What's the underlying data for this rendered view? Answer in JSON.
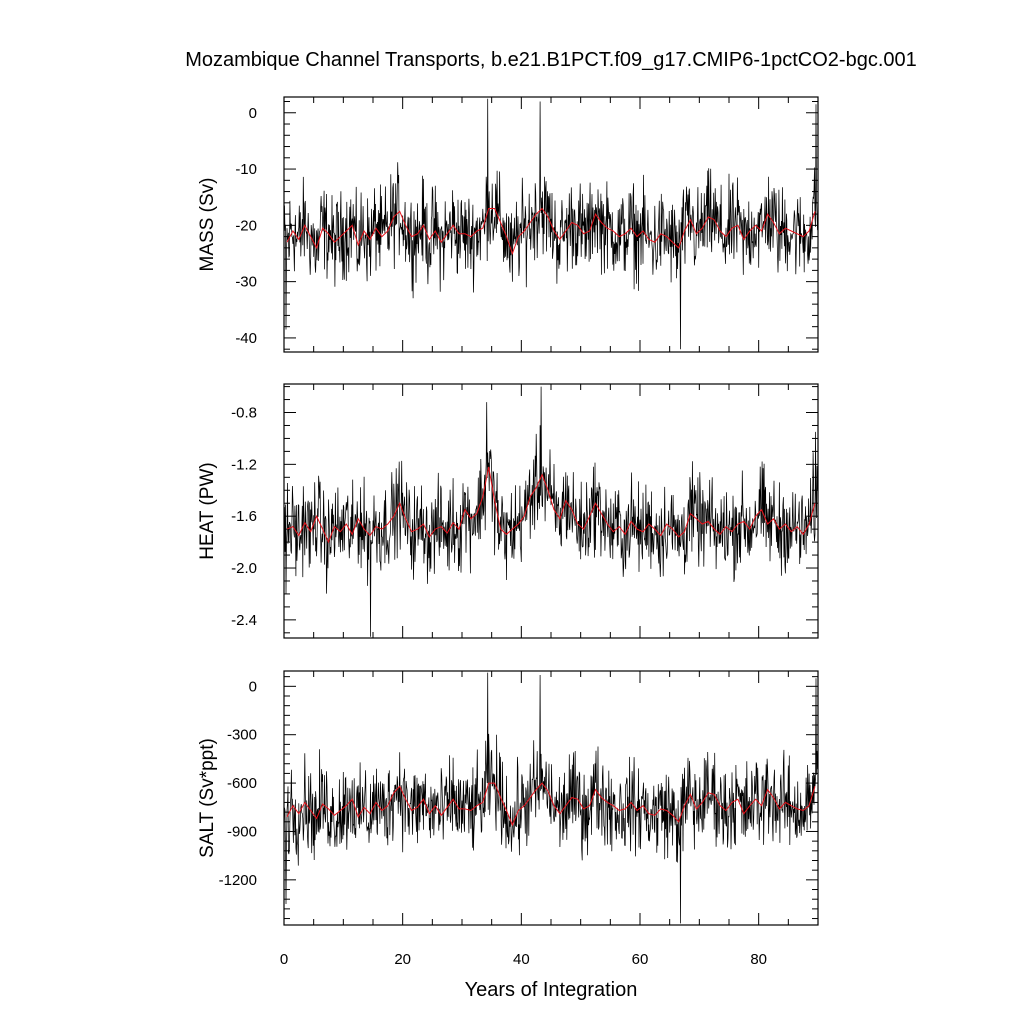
{
  "chart_data": {
    "type": "line",
    "title": "Mozambique Channel Transports, b.e21.B1PCT.f09_g17.CMIP6-1pctCO2-bgc.001",
    "xlabel": "Years of Integration",
    "x_range": [
      0,
      90
    ],
    "x_ticks": [
      0,
      20,
      40,
      60,
      80
    ],
    "x_tick_labels": [
      "0",
      "20",
      "40",
      "60",
      "80"
    ],
    "monthly_samples_per_year": 12,
    "colors": {
      "monthly": "#000000",
      "annual": "#e8121a"
    },
    "panels": [
      {
        "id": "mass",
        "ylabel": "MASS (Sv)",
        "ylim": [
          -42.5,
          2.8
        ],
        "y_ticks": [
          0,
          -10,
          -20,
          -30,
          -40
        ],
        "y_tick_labels": [
          "0",
          "-10",
          "-20",
          "-30",
          "-40"
        ],
        "y_minor_step": 2,
        "annual_mean": [
          -23.0,
          -21.0,
          -22.5,
          -20.0,
          -22.0,
          -24.0,
          -20.5,
          -21.5,
          -23.0,
          -22.0,
          -21.0,
          -20.0,
          -23.5,
          -21.0,
          -22.5,
          -20.5,
          -22.0,
          -21.0,
          -18.5,
          -17.5,
          -20.0,
          -22.0,
          -21.5,
          -20.0,
          -22.5,
          -21.0,
          -23.0,
          -21.5,
          -20.0,
          -21.5,
          -21.5,
          -22.0,
          -21.0,
          -20.5,
          -17.0,
          -17.0,
          -19.5,
          -22.0,
          -25.0,
          -22.0,
          -21.0,
          -19.5,
          -18.0,
          -17.0,
          -18.5,
          -21.0,
          -22.5,
          -21.0,
          -19.5,
          -20.0,
          -21.5,
          -21.0,
          -18.0,
          -19.5,
          -20.5,
          -21.0,
          -22.0,
          -21.5,
          -20.5,
          -22.0,
          -21.0,
          -22.5,
          -23.0,
          -21.5,
          -22.0,
          -23.0,
          -24.0,
          -21.0,
          -19.0,
          -21.5,
          -20.5,
          -18.5,
          -19.0,
          -21.0,
          -22.0,
          -20.5,
          -20.0,
          -22.5,
          -21.0,
          -20.0,
          -21.0,
          -18.0,
          -19.5,
          -21.5,
          -20.5,
          -21.0,
          -21.5,
          -22.0,
          -21.0,
          -17.5
        ],
        "spikes": [
          [
            0.3,
            -38.5
          ],
          [
            34.3,
            2.5
          ],
          [
            43.2,
            2.0
          ],
          [
            66.8,
            -42.0
          ],
          [
            89.7,
            1.5
          ]
        ]
      },
      {
        "id": "heat",
        "ylabel": "HEAT (PW)",
        "ylim": [
          -2.54,
          -0.58
        ],
        "y_ticks": [
          -0.8,
          -1.2,
          -1.6,
          -2.0,
          -2.4
        ],
        "y_tick_labels": [
          "-0.8",
          "-1.2",
          "-1.6",
          "-2.0",
          "-2.4"
        ],
        "y_minor_step": 0.1,
        "annual_mean": [
          -1.7,
          -1.68,
          -1.75,
          -1.65,
          -1.72,
          -1.6,
          -1.7,
          -1.8,
          -1.68,
          -1.72,
          -1.66,
          -1.74,
          -1.62,
          -1.7,
          -1.75,
          -1.68,
          -1.7,
          -1.66,
          -1.6,
          -1.5,
          -1.62,
          -1.72,
          -1.7,
          -1.66,
          -1.76,
          -1.7,
          -1.68,
          -1.73,
          -1.65,
          -1.7,
          -1.55,
          -1.62,
          -1.58,
          -1.45,
          -1.22,
          -1.48,
          -1.7,
          -1.74,
          -1.7,
          -1.66,
          -1.6,
          -1.45,
          -1.38,
          -1.28,
          -1.4,
          -1.55,
          -1.62,
          -1.48,
          -1.55,
          -1.66,
          -1.7,
          -1.6,
          -1.5,
          -1.58,
          -1.66,
          -1.72,
          -1.68,
          -1.74,
          -1.64,
          -1.7,
          -1.72,
          -1.66,
          -1.7,
          -1.75,
          -1.66,
          -1.7,
          -1.76,
          -1.72,
          -1.58,
          -1.62,
          -1.66,
          -1.64,
          -1.7,
          -1.74,
          -1.68,
          -1.72,
          -1.66,
          -1.64,
          -1.7,
          -1.6,
          -1.55,
          -1.66,
          -1.62,
          -1.7,
          -1.66,
          -1.72,
          -1.68,
          -1.74,
          -1.66,
          -1.5
        ],
        "spikes": [
          [
            0.3,
            -2.2
          ],
          [
            14.6,
            -2.53
          ],
          [
            34.2,
            -0.72
          ],
          [
            43.3,
            -0.6
          ],
          [
            89.6,
            -0.95
          ]
        ]
      },
      {
        "id": "salt",
        "ylabel": "SALT (Sv*ppt)",
        "ylim": [
          -1480,
          95
        ],
        "y_ticks": [
          0,
          -300,
          -600,
          -900,
          -1200
        ],
        "y_tick_labels": [
          "0",
          "-300",
          "-600",
          "-900",
          "-1200"
        ],
        "y_minor_step": 60,
        "annual_mean": [
          -810,
          -740,
          -790,
          -720,
          -770,
          -820,
          -730,
          -760,
          -800,
          -770,
          -740,
          -700,
          -810,
          -750,
          -790,
          -720,
          -770,
          -740,
          -660,
          -620,
          -700,
          -770,
          -750,
          -700,
          -790,
          -740,
          -800,
          -750,
          -700,
          -760,
          -760,
          -770,
          -740,
          -720,
          -600,
          -600,
          -690,
          -770,
          -860,
          -770,
          -740,
          -690,
          -640,
          -600,
          -650,
          -740,
          -790,
          -740,
          -690,
          -700,
          -760,
          -740,
          -640,
          -690,
          -720,
          -740,
          -770,
          -760,
          -720,
          -770,
          -740,
          -790,
          -800,
          -760,
          -770,
          -800,
          -840,
          -740,
          -670,
          -760,
          -720,
          -660,
          -670,
          -740,
          -770,
          -720,
          -700,
          -790,
          -740,
          -700,
          -740,
          -640,
          -690,
          -760,
          -720,
          -740,
          -760,
          -770,
          -740,
          -620
        ],
        "spikes": [
          [
            0.3,
            -1350
          ],
          [
            34.3,
            85
          ],
          [
            43.2,
            70
          ],
          [
            66.8,
            -1470
          ],
          [
            89.7,
            50
          ]
        ]
      }
    ]
  }
}
